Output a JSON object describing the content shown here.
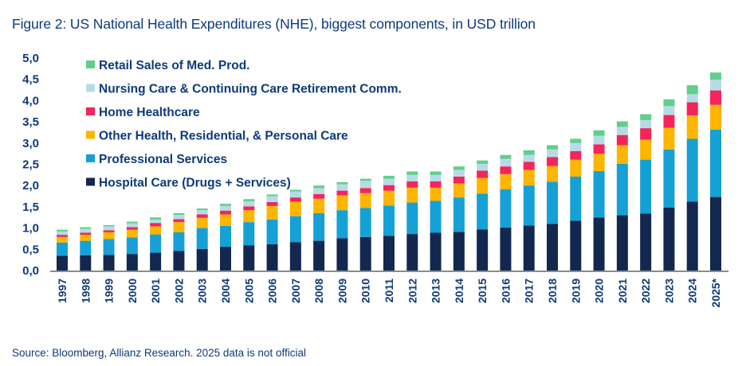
{
  "title": "Figure 2: US National Health Expenditures (NHE), biggest components, in USD trillion",
  "source": "Source: Bloomberg, Allianz Research. 2025 data is not official",
  "chart_data": {
    "type": "bar",
    "stacked": true,
    "title": "Figure 2: US National Health Expenditures (NHE), biggest components, in USD trillion",
    "xlabel": "",
    "ylabel": "USD trillion",
    "ylim": [
      0,
      5
    ],
    "yticks": [
      "0,0",
      "0,5",
      "1,0",
      "1,5",
      "2,0",
      "2,5",
      "3,0",
      "3,5",
      "4,0",
      "4,5",
      "5,0"
    ],
    "ytick_values": [
      0,
      0.5,
      1,
      1.5,
      2,
      2.5,
      3,
      3.5,
      4,
      4.5,
      5
    ],
    "grid": false,
    "legend_position": "top-left",
    "categories": [
      "1997",
      "1998",
      "1999",
      "2000",
      "2001",
      "2002",
      "2003",
      "2004",
      "2005",
      "2006",
      "2007",
      "2008",
      "2009",
      "2010",
      "2011",
      "2012",
      "2013",
      "2014",
      "2015",
      "2016",
      "2017",
      "2018",
      "2019",
      "2020",
      "2021",
      "2022",
      "2023",
      "2024",
      "2025*"
    ],
    "series": [
      {
        "name": "Hospital Care (Drugs + Services)",
        "color": "#13284f",
        "values": [
          0.35,
          0.36,
          0.37,
          0.39,
          0.42,
          0.46,
          0.51,
          0.56,
          0.59,
          0.62,
          0.67,
          0.7,
          0.76,
          0.79,
          0.82,
          0.86,
          0.89,
          0.91,
          0.97,
          1.01,
          1.06,
          1.1,
          1.17,
          1.25,
          1.3,
          1.34,
          1.48,
          1.62,
          1.73
        ]
      },
      {
        "name": "Professional Services",
        "color": "#15a1d5",
        "values": [
          0.31,
          0.34,
          0.37,
          0.39,
          0.43,
          0.44,
          0.49,
          0.49,
          0.55,
          0.58,
          0.61,
          0.65,
          0.66,
          0.68,
          0.71,
          0.74,
          0.75,
          0.81,
          0.84,
          0.9,
          0.94,
          0.99,
          1.04,
          1.09,
          1.21,
          1.27,
          1.37,
          1.48,
          1.59
        ]
      },
      {
        "name": "Other Health, Residential, & Personal Care",
        "color": "#fdb500",
        "values": [
          0.13,
          0.14,
          0.16,
          0.18,
          0.19,
          0.24,
          0.24,
          0.27,
          0.28,
          0.32,
          0.34,
          0.34,
          0.35,
          0.35,
          0.35,
          0.35,
          0.31,
          0.33,
          0.37,
          0.36,
          0.37,
          0.37,
          0.4,
          0.41,
          0.44,
          0.47,
          0.51,
          0.55,
          0.58
        ]
      },
      {
        "name": "Home Healthcare",
        "color": "#f5245c",
        "values": [
          0.05,
          0.05,
          0.05,
          0.06,
          0.08,
          0.07,
          0.08,
          0.09,
          0.09,
          0.09,
          0.1,
          0.11,
          0.11,
          0.12,
          0.13,
          0.15,
          0.15,
          0.16,
          0.17,
          0.18,
          0.19,
          0.21,
          0.2,
          0.22,
          0.24,
          0.27,
          0.3,
          0.31,
          0.34
        ]
      },
      {
        "name": "Nursing Care & Continuing Care Retirement Comm.",
        "color": "#b7dbe6",
        "values": [
          0.08,
          0.09,
          0.09,
          0.09,
          0.08,
          0.1,
          0.1,
          0.11,
          0.12,
          0.14,
          0.14,
          0.14,
          0.15,
          0.17,
          0.15,
          0.15,
          0.15,
          0.16,
          0.16,
          0.18,
          0.16,
          0.18,
          0.19,
          0.2,
          0.19,
          0.19,
          0.21,
          0.19,
          0.25
        ]
      },
      {
        "name": "Retail Sales of Med. Prod.",
        "color": "#5fcf8c",
        "values": [
          0.04,
          0.04,
          0.03,
          0.04,
          0.05,
          0.04,
          0.04,
          0.05,
          0.05,
          0.04,
          0.04,
          0.06,
          0.05,
          0.05,
          0.07,
          0.08,
          0.08,
          0.08,
          0.08,
          0.09,
          0.11,
          0.1,
          0.1,
          0.13,
          0.13,
          0.14,
          0.16,
          0.21,
          0.17
        ]
      }
    ],
    "legend_order": [
      "Retail Sales of Med. Prod.",
      "Nursing Care & Continuing Care Retirement Comm.",
      "Home Healthcare",
      "Other Health, Residential, & Personal Care",
      "Professional Services",
      "Hospital Care (Drugs + Services)"
    ]
  }
}
